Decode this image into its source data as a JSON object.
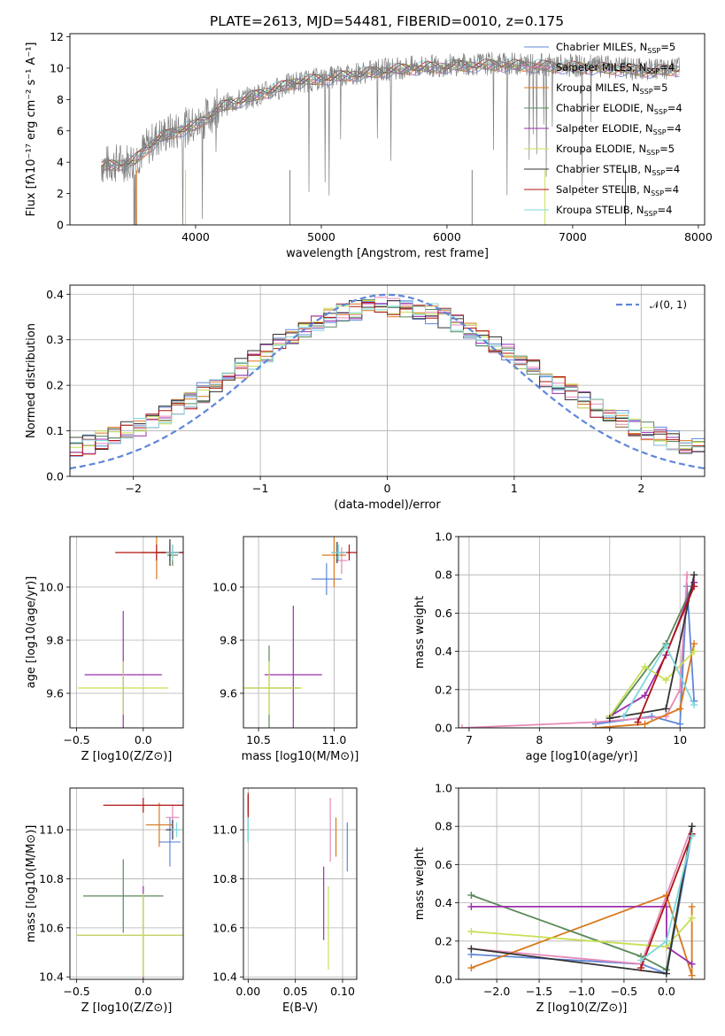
{
  "page": {
    "title": "PLATE=2613, MJD=54481, FIBERID=0010, z=0.175"
  },
  "colors": {
    "spectrum_data": "#808080",
    "gaussian_curve": "#5f87d9",
    "grid": "#b0b0b0",
    "axes": "#000000",
    "background": "#ffffff"
  },
  "models": [
    {
      "label": "Chabrier MILES, N",
      "sub": "SSP",
      "suffix": "=5",
      "color": "#5f87d9"
    },
    {
      "label": "Salpeter MILES, N",
      "sub": "SSP",
      "suffix": "=4",
      "color": "#e68ab8"
    },
    {
      "label": "Kroupa MILES, N",
      "sub": "SSP",
      "suffix": "=5",
      "color": "#d9781d"
    },
    {
      "label": "Chabrier ELODIE, N",
      "sub": "SSP",
      "suffix": "=4",
      "color": "#5a8a5a"
    },
    {
      "label": "Salpeter ELODIE, N",
      "sub": "SSP",
      "suffix": "=4",
      "color": "#9b2fae"
    },
    {
      "label": "Kroupa ELODIE, N",
      "sub": "SSP",
      "suffix": "=5",
      "color": "#c8e055"
    },
    {
      "label": "Chabrier STELIB, N",
      "sub": "SSP",
      "suffix": "=4",
      "color": "#333333"
    },
    {
      "label": "Salpeter STELIB, N",
      "sub": "SSP",
      "suffix": "=4",
      "color": "#b01515"
    },
    {
      "label": "Kroupa STELIB, N",
      "sub": "SSP",
      "suffix": "=4",
      "color": "#7fd8dd"
    }
  ],
  "chart_data": [
    {
      "id": "spectrum",
      "type": "line",
      "xlabel": "wavelength [Angstrom, rest frame]",
      "ylabel": "Flux [fλ10⁻¹⁷ erg cm⁻² s⁻¹ A⁻¹]",
      "xlim": [
        3000,
        8050
      ],
      "ylim": [
        0,
        12.2
      ],
      "xticks": [
        "4000",
        "5000",
        "6000",
        "7000",
        "8000"
      ],
      "yticks": [
        "0",
        "2",
        "4",
        "6",
        "8",
        "10",
        "12"
      ],
      "grid": false,
      "legend_position": "right",
      "data_trend": {
        "x": [
          3250,
          3500,
          3700,
          3900,
          4000,
          4200,
          4500,
          4800,
          5000,
          5300,
          5600,
          6000,
          6400,
          6800,
          7200,
          7600,
          7850
        ],
        "y": [
          3.8,
          4.1,
          5.6,
          6.2,
          6.3,
          7.6,
          8.3,
          9.1,
          9.3,
          9.7,
          10.0,
          10.2,
          10.3,
          10.2,
          10.1,
          9.9,
          10.0
        ]
      },
      "model_trend": {
        "x": [
          3250,
          3500,
          3700,
          3900,
          4000,
          4200,
          4500,
          4800,
          5000,
          5300,
          5600,
          6000,
          6400,
          6800,
          7200,
          7600,
          7850
        ],
        "y": [
          3.7,
          4.0,
          5.5,
          6.1,
          6.3,
          7.5,
          8.3,
          9.1,
          9.3,
          9.6,
          9.9,
          10.1,
          10.2,
          10.1,
          10.0,
          9.8,
          9.9
        ]
      }
    },
    {
      "id": "residual_histogram",
      "type": "bar",
      "xlabel": "(data-model)/error",
      "ylabel": "Normed distribution",
      "xlim": [
        -2.5,
        2.5
      ],
      "ylim": [
        0,
        0.42
      ],
      "xticks": [
        "−2",
        "−1",
        "0",
        "1",
        "2"
      ],
      "yticks": [
        "0.0",
        "0.1",
        "0.2",
        "0.3",
        "0.4"
      ],
      "grid": true,
      "legend": "𝒩(0, 1)",
      "legend_position": "top-right",
      "bin_edges_start": -2.5,
      "bin_width": 0.1,
      "bins": 50,
      "gaussian": {
        "mean": 0,
        "sigma": 1
      },
      "observed_shape": {
        "sigma": 1.15,
        "peak": 0.345
      }
    },
    {
      "id": "age_vs_Z",
      "type": "scatter",
      "xlabel": "Z [log10(Z/Z⊙)]",
      "ylabel": "age  [log10(age/yr)]",
      "xlim": [
        -0.55,
        0.3
      ],
      "ylim": [
        9.47,
        10.19
      ],
      "xticks": [
        "−0.5",
        "0.0"
      ],
      "yticks": [
        "9.6",
        "9.8",
        "10.0"
      ],
      "grid": true,
      "points": [
        {
          "x": 0.2,
          "y": 10.13,
          "xerr": 0.08,
          "yerr": 0.03
        },
        {
          "x": 0.22,
          "y": 10.13,
          "xerr": 0.05,
          "yerr": 0.03
        },
        {
          "x": 0.1,
          "y": 10.13,
          "xerr": 0.12,
          "yerr": 0.1
        },
        {
          "x": 0.22,
          "y": 10.12,
          "xerr": 0.04,
          "yerr": 0.04
        },
        {
          "x": -0.15,
          "y": 9.67,
          "xerr": 0.29,
          "yerr": 0.24
        },
        {
          "x": -0.15,
          "y": 9.62,
          "xerr": 0.34,
          "yerr": 0.1
        },
        {
          "x": 0.2,
          "y": 10.13,
          "xerr": 0.1,
          "yerr": 0.05
        },
        {
          "x": 0.1,
          "y": 10.13,
          "xerr": 0.31,
          "yerr": 0.03
        },
        {
          "x": 0.22,
          "y": 10.13,
          "xerr": 0.05,
          "yerr": 0.03
        }
      ]
    },
    {
      "id": "age_vs_mass",
      "type": "scatter",
      "xlabel": "mass [log10(M/M⊙)]",
      "ylabel": "",
      "xlim": [
        10.4,
        11.15
      ],
      "ylim": [
        9.47,
        10.19
      ],
      "xticks": [
        "10.5",
        "11.0"
      ],
      "yticks": [
        "9.6",
        "9.8",
        "10.0"
      ],
      "grid": true,
      "points": [
        {
          "x": 10.95,
          "y": 10.03,
          "xerr": 0.1,
          "yerr": 0.06
        },
        {
          "x": 11.05,
          "y": 10.1,
          "xerr": 0.04,
          "yerr": 0.05
        },
        {
          "x": 11.0,
          "y": 10.12,
          "xerr": 0.08,
          "yerr": 0.12
        },
        {
          "x": 10.57,
          "y": 9.62,
          "xerr": 0.2,
          "yerr": 0.16
        },
        {
          "x": 10.73,
          "y": 9.67,
          "xerr": 0.19,
          "yerr": 0.26
        },
        {
          "x": 10.57,
          "y": 9.62,
          "xerr": 0.22,
          "yerr": 0.1
        },
        {
          "x": 11.02,
          "y": 10.13,
          "xerr": 0.04,
          "yerr": 0.04
        },
        {
          "x": 11.1,
          "y": 10.13,
          "xerr": 0.05,
          "yerr": 0.03
        },
        {
          "x": 11.03,
          "y": 10.13,
          "xerr": 0.05,
          "yerr": 0.03
        }
      ]
    },
    {
      "id": "massweight_vs_age",
      "type": "line",
      "xlabel": "age  [log10(age/yr)]",
      "ylabel": "mass weight",
      "xlim": [
        6.85,
        10.35
      ],
      "ylim": [
        0,
        1.0
      ],
      "xticks": [
        "7",
        "8",
        "9",
        "10"
      ],
      "yticks": [
        "0.0",
        "0.2",
        "0.4",
        "0.6",
        "0.8",
        "1.0"
      ],
      "grid": true,
      "series": [
        {
          "x": [
            8.8,
            9.6,
            10.0,
            10.1,
            10.2
          ],
          "y": [
            0.02,
            0.06,
            0.02,
            0.74,
            0.14
          ]
        },
        {
          "x": [
            6.9,
            8.8,
            9.8,
            10.0,
            10.1
          ],
          "y": [
            0.0,
            0.03,
            0.06,
            0.2,
            0.8
          ]
        },
        {
          "x": [
            8.8,
            9.5,
            10.0,
            10.2
          ],
          "y": [
            0.0,
            0.02,
            0.1,
            0.44
          ]
        },
        {
          "x": [
            9.0,
            9.8,
            10.2
          ],
          "y": [
            0.05,
            0.44,
            0.76
          ]
        },
        {
          "x": [
            9.0,
            9.5,
            9.8,
            10.2
          ],
          "y": [
            0.06,
            0.17,
            0.38,
            0.76
          ]
        },
        {
          "x": [
            9.0,
            9.5,
            9.8,
            10.2
          ],
          "y": [
            0.06,
            0.32,
            0.25,
            0.4
          ]
        },
        {
          "x": [
            9.0,
            9.8,
            10.2
          ],
          "y": [
            0.05,
            0.1,
            0.8
          ]
        },
        {
          "x": [
            9.4,
            10.2
          ],
          "y": [
            0.03,
            0.74
          ]
        },
        {
          "x": [
            9.2,
            9.8,
            10.2
          ],
          "y": [
            0.06,
            0.43,
            0.12
          ]
        }
      ]
    },
    {
      "id": "mass_vs_Z",
      "type": "scatter",
      "xlabel": "Z [log10(Z/Z⊙)]",
      "ylabel": "mass [log10(M/M⊙)]",
      "xlim": [
        -0.55,
        0.3
      ],
      "ylim": [
        10.39,
        11.17
      ],
      "xticks": [
        "−0.5",
        "0.0"
      ],
      "yticks": [
        "10.4",
        "10.6",
        "10.8",
        "11.0"
      ],
      "grid": true,
      "points": [
        {
          "x": 0.2,
          "y": 10.95,
          "xerr": 0.08,
          "yerr": 0.1
        },
        {
          "x": 0.22,
          "y": 11.05,
          "xerr": 0.05,
          "yerr": 0.05
        },
        {
          "x": 0.12,
          "y": 11.02,
          "xerr": 0.1,
          "yerr": 0.09
        },
        {
          "x": -0.15,
          "y": 10.73,
          "xerr": 0.3,
          "yerr": 0.15
        },
        {
          "x": 0.0,
          "y": 10.57,
          "xerr": 0.5,
          "yerr": 0.2
        },
        {
          "x": 0.0,
          "y": 10.57,
          "xerr": 0.5,
          "yerr": 0.17
        },
        {
          "x": 0.22,
          "y": 11.0,
          "xerr": 0.05,
          "yerr": 0.04
        },
        {
          "x": 0.0,
          "y": 11.1,
          "xerr": 0.3,
          "yerr": 0.03
        },
        {
          "x": 0.25,
          "y": 11.0,
          "xerr": 0.04,
          "yerr": 0.03
        }
      ]
    },
    {
      "id": "mass_vs_ebv",
      "type": "scatter",
      "xlabel": "E(B-V)",
      "ylabel": "",
      "xlim": [
        -0.005,
        0.115
      ],
      "ylim": [
        10.39,
        11.17
      ],
      "xticks": [
        "0.00",
        "0.05",
        "0.10"
      ],
      "yticks": [
        "10.4",
        "10.6",
        "10.8",
        "11.0"
      ],
      "grid": true,
      "points": [
        {
          "x": 0.105,
          "y": 10.93,
          "xerr": 0,
          "yerr": 0.1
        },
        {
          "x": 0.087,
          "y": 11.0,
          "xerr": 0,
          "yerr": 0.13
        },
        {
          "x": 0.093,
          "y": 10.97,
          "xerr": 0,
          "yerr": 0.08
        },
        {
          "x": 0.0,
          "y": 11.0,
          "xerr": 0,
          "yerr": 0.05
        },
        {
          "x": 0.08,
          "y": 10.7,
          "xerr": 0,
          "yerr": 0.15
        },
        {
          "x": 0.085,
          "y": 10.6,
          "xerr": 0,
          "yerr": 0.17
        },
        {
          "x": 0.0,
          "y": 11.1,
          "xerr": 0,
          "yerr": 0.04
        },
        {
          "x": 0.0,
          "y": 11.1,
          "xerr": 0,
          "yerr": 0.05
        },
        {
          "x": 0.0,
          "y": 11.0,
          "xerr": 0,
          "yerr": 0.05
        }
      ]
    },
    {
      "id": "massweight_vs_Z",
      "type": "line",
      "xlabel": "Z [log10(Z/Z⊙)]",
      "ylabel": "mass weight",
      "xlim": [
        -2.45,
        0.45
      ],
      "ylim": [
        0,
        1.0
      ],
      "xticks": [
        "−2.0",
        "−1.5",
        "−1.0",
        "−0.5",
        "0.0"
      ],
      "yticks": [
        "0.0",
        "0.2",
        "0.4",
        "0.6",
        "0.8",
        "1.0"
      ],
      "grid": true,
      "series": [
        {
          "x": [
            -2.3,
            -0.3,
            0.0,
            0.3
          ],
          "y": [
            0.13,
            0.08,
            0.03,
            0.76
          ]
        },
        {
          "x": [
            -2.3,
            -0.3,
            0.3
          ],
          "y": [
            0.16,
            0.08,
            0.8
          ]
        },
        {
          "x": [
            -2.3,
            0.0,
            0.3,
            0.3
          ],
          "y": [
            0.06,
            0.44,
            0.02,
            0.38
          ]
        },
        {
          "x": [
            -2.3,
            -0.3,
            0.0,
            0.3
          ],
          "y": [
            0.44,
            0.12,
            0.05,
            0.8
          ]
        },
        {
          "x": [
            -2.3,
            0.0,
            0.0,
            0.3
          ],
          "y": [
            0.38,
            0.38,
            0.17,
            0.08
          ]
        },
        {
          "x": [
            -2.3,
            0.0,
            0.3
          ],
          "y": [
            0.25,
            0.17,
            0.32
          ]
        },
        {
          "x": [
            -2.3,
            0.0,
            0.3
          ],
          "y": [
            0.16,
            0.03,
            0.8
          ]
        },
        {
          "x": [
            -0.3,
            0.3
          ],
          "y": [
            0.06,
            0.76
          ]
        },
        {
          "x": [
            -0.3,
            0.0,
            0.3
          ],
          "y": [
            0.1,
            0.2,
            0.75
          ]
        }
      ]
    }
  ]
}
